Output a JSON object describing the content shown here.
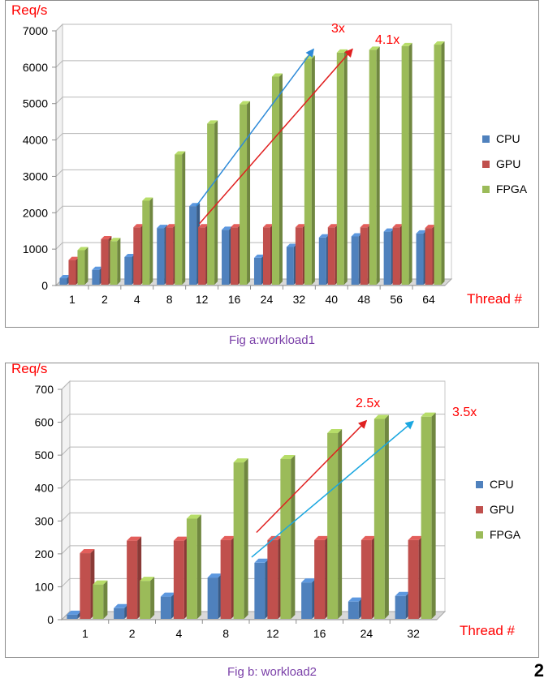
{
  "chart_data": [
    {
      "type": "bar",
      "ylabel": "Req/s",
      "xlabel": "Thread #",
      "categories": [
        "1",
        "2",
        "4",
        "8",
        "12",
        "16",
        "24",
        "32",
        "40",
        "48",
        "56",
        "64"
      ],
      "ylim": [
        0,
        7000
      ],
      "yticks": [
        "0",
        "1000",
        "2000",
        "3000",
        "4000",
        "5000",
        "6000",
        "7000"
      ],
      "grid": true,
      "legend": "right",
      "series": [
        {
          "name": "CPU",
          "color": "#4f81bd",
          "values": [
            200,
            430,
            780,
            1580,
            2180,
            1530,
            760,
            1060,
            1320,
            1350,
            1480,
            1430
          ]
        },
        {
          "name": "GPU",
          "color": "#c0504d",
          "values": [
            700,
            1270,
            1600,
            1600,
            1600,
            1600,
            1600,
            1600,
            1600,
            1600,
            1600,
            1580
          ]
        },
        {
          "name": "FPGA",
          "color": "#9bbb59",
          "values": [
            970,
            1220,
            2330,
            3600,
            4450,
            4980,
            5740,
            6230,
            6400,
            6480,
            6580,
            6620
          ]
        }
      ],
      "annotations": [
        {
          "text": "3x",
          "color": "#ff0000",
          "arrow_color": "#2e8ad8",
          "from": [
            "12",
            2180
          ],
          "to": [
            "40",
            6500
          ]
        },
        {
          "text": "4.1x",
          "color": "#ff0000",
          "arrow_color": "#e02020",
          "from": [
            "12",
            1700
          ],
          "to": [
            "48",
            6500
          ]
        }
      ],
      "caption": "Fig a:workload1"
    },
    {
      "type": "bar",
      "ylabel": "Req/s",
      "xlabel": "Thread #",
      "categories": [
        "1",
        "2",
        "4",
        "8",
        "12",
        "16",
        "24",
        "32"
      ],
      "ylim": [
        0,
        700
      ],
      "yticks": [
        "0",
        "100",
        "200",
        "300",
        "400",
        "500",
        "600",
        "700"
      ],
      "grid": true,
      "legend": "right",
      "series": [
        {
          "name": "CPU",
          "color": "#4f81bd",
          "values": [
            15,
            35,
            70,
            128,
            173,
            113,
            55,
            72
          ]
        },
        {
          "name": "GPU",
          "color": "#c0504d",
          "values": [
            202,
            240,
            240,
            242,
            242,
            242,
            242,
            242
          ]
        },
        {
          "name": "FPGA",
          "color": "#9bbb59",
          "values": [
            107,
            118,
            307,
            478,
            488,
            567,
            610,
            617
          ]
        }
      ],
      "annotations": [
        {
          "text": "2.5x",
          "color": "#ff0000",
          "arrow_color": "#e02020",
          "from": [
            "12",
            265
          ],
          "to": [
            "24",
            605
          ]
        },
        {
          "text": "3.5x",
          "color": "#ff0000",
          "arrow_color": "#1ba7e0",
          "from": [
            "12",
            190
          ],
          "to": [
            "32",
            603
          ]
        }
      ],
      "caption": "Fig b: workload2"
    }
  ],
  "page_number": "2"
}
